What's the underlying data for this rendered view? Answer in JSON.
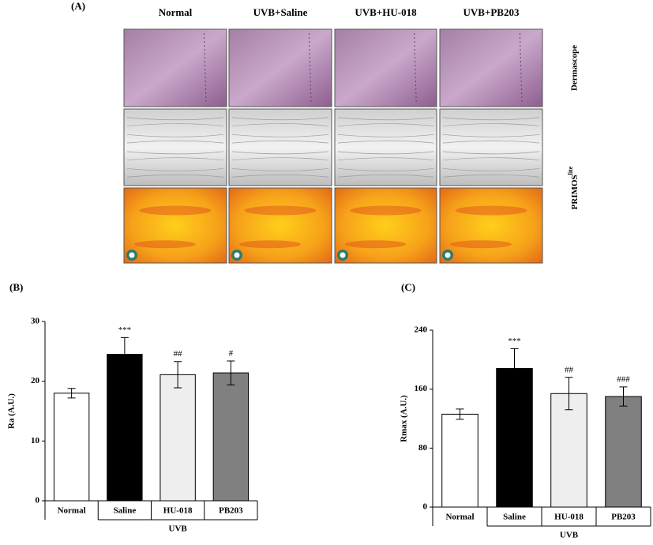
{
  "panel_a": {
    "panel_label": "(A)",
    "column_labels": [
      "Normal",
      "UVB+Saline",
      "UVB+HU-018",
      "UVB+PB203"
    ],
    "row_labels": [
      {
        "text": "Dermascope"
      },
      {
        "text": "PRIMOS",
        "superscript": "lite"
      }
    ]
  },
  "chart_data": [
    {
      "type": "bar",
      "panel_label": "(B)",
      "y_label": "Ra (A.U.)",
      "categories": [
        "Normal",
        "Saline",
        "HU-018",
        "PB203"
      ],
      "group_label": "UVB",
      "values": [
        18,
        24.5,
        21.1,
        21.4
      ],
      "errors": [
        0.8,
        2.8,
        2.2,
        2.0
      ],
      "annotations": [
        null,
        "***",
        "##",
        "#"
      ],
      "colors": [
        "#ffffff",
        "#000000",
        "#eeeeee",
        "#808080"
      ],
      "ylim": [
        0,
        30
      ],
      "yticks": [
        0,
        10,
        20,
        30
      ]
    },
    {
      "type": "bar",
      "panel_label": "(C)",
      "y_label": "Rmax (A.U.)",
      "categories": [
        "Normal",
        "Saline",
        "HU-018",
        "PB203"
      ],
      "group_label": "UVB",
      "values": [
        126,
        188,
        154,
        150
      ],
      "errors": [
        7,
        27,
        22,
        13
      ],
      "annotations": [
        null,
        "***",
        "##",
        "###"
      ],
      "colors": [
        "#ffffff",
        "#000000",
        "#eeeeee",
        "#808080"
      ],
      "ylim": [
        0,
        240
      ],
      "yticks": [
        0,
        80,
        160,
        240
      ]
    }
  ]
}
